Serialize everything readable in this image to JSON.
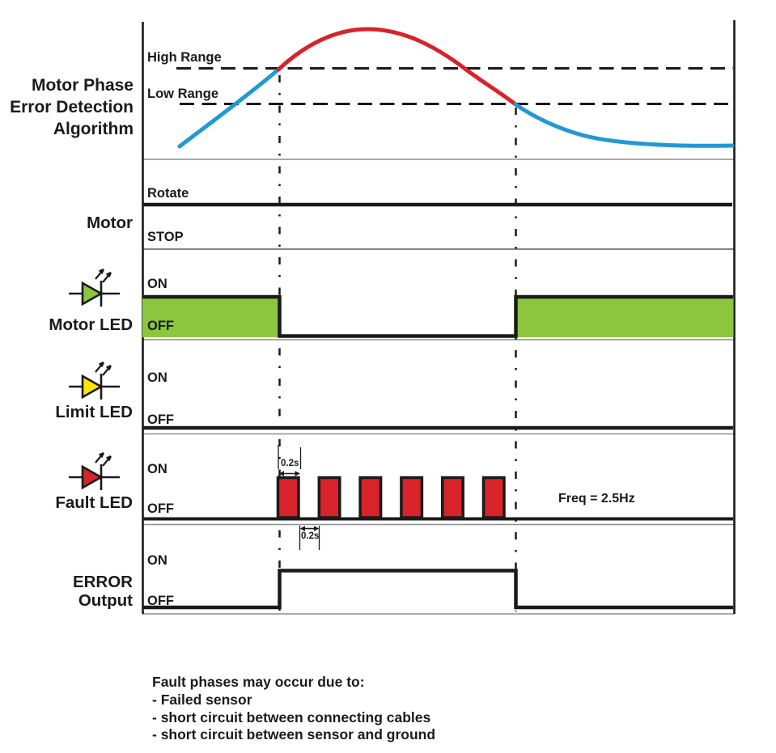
{
  "diagram": {
    "algorithm": {
      "title_line1": "Motor Phase",
      "title_line2": "Error Detection",
      "title_line3": "Algorithm",
      "high_range_label": "High Range",
      "low_range_label": "Low Range"
    },
    "motor": {
      "label": "Motor",
      "high_label": "Rotate",
      "low_label": "STOP"
    },
    "motor_led": {
      "label": "Motor LED",
      "on_label": "ON",
      "off_label": "OFF"
    },
    "limit_led": {
      "label": "Limit LED",
      "on_label": "ON",
      "off_label": "OFF"
    },
    "fault_led": {
      "label": "Fault LED",
      "on_label": "ON",
      "off_label": "OFF",
      "pulse_count": 6,
      "pulse_on_duration": "0.2s",
      "pulse_off_duration": "0.2s",
      "frequency_label": "Freq = 2.5Hz"
    },
    "error_output": {
      "label_line1": "ERROR",
      "label_line2": "Output",
      "on_label": "ON",
      "off_label": "OFF"
    },
    "footer": {
      "line1": "Fault phases may occur due to:",
      "line2": "- Failed sensor",
      "line3": "- short circuit between connecting cables",
      "line4": "- short circuit between sensor and ground"
    },
    "colors": {
      "normal_blue": "#2199D4",
      "fault_red": "#D8232A",
      "motor_green": "#8CC63E",
      "limit_yellow": "#FFE600",
      "line_black": "#1a1a1a"
    }
  }
}
